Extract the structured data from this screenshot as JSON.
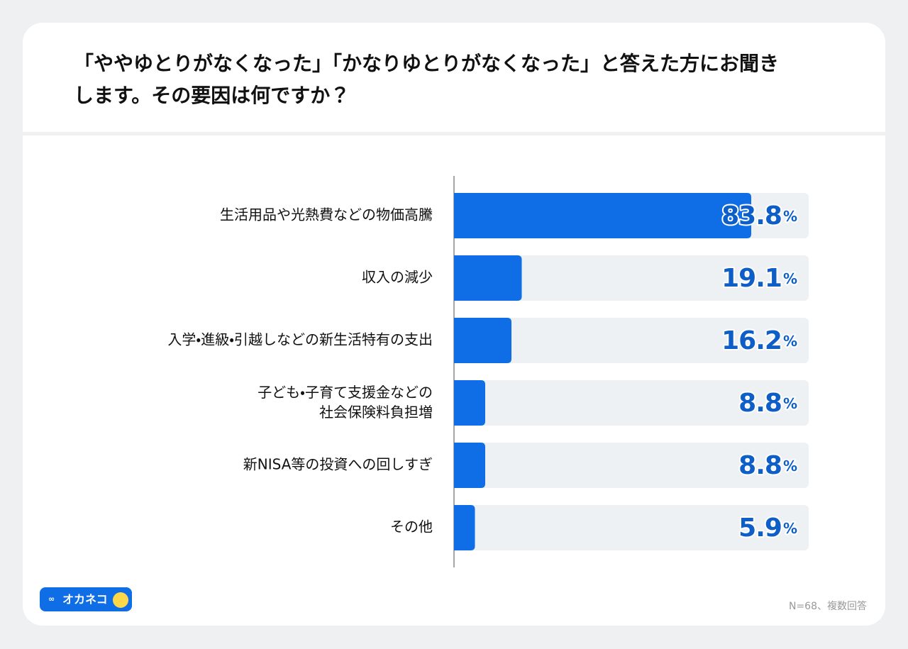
{
  "chart_data": {
    "type": "hbar",
    "title": [
      "「ややゆとりがなくなった」「かなりゆとりがなくなった」と答えた方にお聞き",
      "します。その要因は何ですか？"
    ],
    "categories": [
      "生活用品や光熱費などの物価高騰",
      "収入の減少",
      "入学・進級・引越しなどの新生活特有の支出",
      "子ども・子育て支援金などの\n社会保険料負担増",
      "新NISA等の投資への回しすぎ",
      "その他"
    ],
    "values": [
      83.8,
      19.1,
      16.2,
      8.8,
      8.8,
      5.9
    ],
    "value_labels": [
      "83.8%",
      "19.1%",
      "16.2%",
      "8.8%",
      "8.8%",
      "5.9%"
    ],
    "color": "#0f6ee6",
    "xlim": [
      0,
      100
    ],
    "note": "N=68、複数回答",
    "logo": "オカネコ"
  }
}
